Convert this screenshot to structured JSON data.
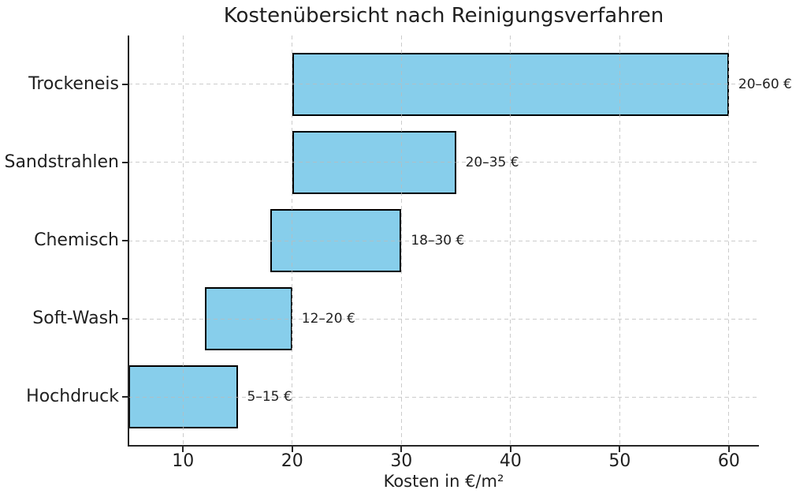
{
  "chart_data": {
    "type": "bar",
    "orientation": "horizontal",
    "title": "Kostenübersicht nach Reinigungsverfahren",
    "xlabel": "Kosten in €/m²",
    "ylabel": "",
    "categories": [
      "Trockeneis",
      "Sandstrahlen",
      "Chemisch",
      "Soft-Wash",
      "Hochdruck"
    ],
    "bars": [
      {
        "category": "Trockeneis",
        "min": 20,
        "max": 60,
        "label": "20–60 €"
      },
      {
        "category": "Sandstrahlen",
        "min": 20,
        "max": 35,
        "label": "20–35 €"
      },
      {
        "category": "Chemisch",
        "min": 18,
        "max": 30,
        "label": "18–30 €"
      },
      {
        "category": "Soft-Wash",
        "min": 12,
        "max": 20,
        "label": "12–20 €"
      },
      {
        "category": "Hochdruck",
        "min": 5,
        "max": 15,
        "label": "5–15 €"
      }
    ],
    "xticks": [
      10,
      20,
      30,
      40,
      50,
      60
    ],
    "xlim": [
      5,
      62.75
    ],
    "bar_height_fraction": 0.8,
    "y_margin_fraction": 0.625,
    "grid": {
      "style": "dashed",
      "axes": "both",
      "above_bars": true
    },
    "legend": null,
    "colors": {
      "background": "#ffffff",
      "bar_fill": "#87CEEB",
      "bar_edge": "#000000",
      "grid": "#bbbbbb",
      "text": "#1f1f1f",
      "spine": "#262626"
    }
  }
}
